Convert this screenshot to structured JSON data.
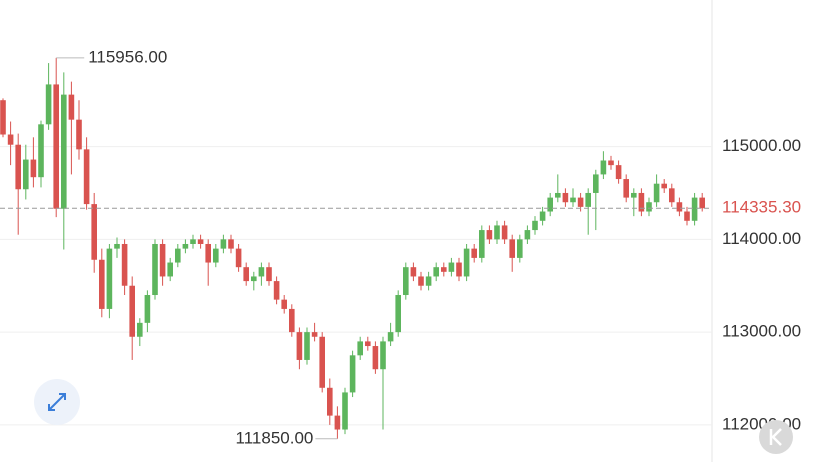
{
  "chart_data": {
    "type": "candlestick",
    "up_color": "#5db55d",
    "down_color": "#d9534f",
    "ylim": [
      111600,
      116580
    ],
    "yticks": [
      {
        "value": 115000,
        "label": "115000.00"
      },
      {
        "value": 114000,
        "label": "114000.00"
      },
      {
        "value": 113000,
        "label": "113000.00"
      },
      {
        "value": 112000,
        "label": "112000.00"
      }
    ],
    "grid": true,
    "current_price": {
      "value": 114335.3,
      "label": "114335.30"
    },
    "max_label": {
      "value": 115956,
      "label": "115956.00"
    },
    "min_label": {
      "value": 111850,
      "label": "111850.00"
    },
    "open": [
      115500,
      115130,
      115020,
      114540,
      114860,
      114670,
      115240,
      115670,
      114330,
      115560,
      115290,
      114970,
      114380,
      113780,
      113250,
      113900,
      113950,
      113500,
      112950,
      113100,
      113400,
      113950,
      113600,
      113750,
      113900,
      113950,
      114000,
      113950,
      113750,
      113900,
      114000,
      113900,
      113700,
      113550,
      113600,
      113700,
      113550,
      113350,
      113250,
      113000,
      112700,
      113000,
      112950,
      112400,
      112100,
      111950,
      112350,
      112750,
      112900,
      112850,
      112600,
      112900,
      113000,
      113400,
      113700,
      113600,
      113500,
      113600,
      113700,
      113650,
      113750,
      113600,
      113900,
      113800,
      114100,
      114000,
      114150,
      114000,
      113800,
      114000,
      114100,
      114200,
      114300,
      114450,
      114500,
      114400,
      114450,
      114350,
      114500,
      114700,
      114850,
      114800,
      114650,
      114450,
      114500,
      114300,
      114400,
      114600,
      114550,
      114400,
      114300,
      114200,
      114450
    ],
    "high": [
      115520,
      115270,
      115140,
      115020,
      115100,
      115280,
      115900,
      115956,
      115800,
      115700,
      115500,
      115100,
      114500,
      113900,
      113950,
      114020,
      114000,
      113600,
      113150,
      113450,
      114000,
      114000,
      113800,
      113950,
      114000,
      114050,
      114050,
      114000,
      113950,
      114050,
      114050,
      113950,
      113750,
      113650,
      113750,
      113750,
      113600,
      113400,
      113300,
      113050,
      113050,
      113100,
      113000,
      112500,
      112200,
      112400,
      112800,
      112950,
      112950,
      112900,
      112950,
      113100,
      113450,
      113750,
      113750,
      113650,
      113650,
      113750,
      113750,
      113800,
      113800,
      113950,
      113950,
      114150,
      114150,
      114200,
      114200,
      114050,
      114050,
      114150,
      114250,
      114350,
      114500,
      114700,
      114550,
      114550,
      114500,
      114550,
      114750,
      114950,
      114900,
      114850,
      114700,
      114550,
      114550,
      114450,
      114700,
      114650,
      114600,
      114450,
      114350,
      114500,
      114500
    ],
    "low": [
      115100,
      114800,
      114050,
      114430,
      114560,
      114560,
      115180,
      114240,
      113890,
      114700,
      114860,
      114320,
      113640,
      113160,
      113150,
      113800,
      113400,
      112700,
      112850,
      113000,
      113350,
      113500,
      113550,
      113700,
      113850,
      113900,
      113900,
      113500,
      113700,
      113850,
      113850,
      113650,
      113500,
      113450,
      113500,
      113500,
      113300,
      113200,
      112950,
      112600,
      112650,
      112900,
      112350,
      112000,
      111850,
      111900,
      112300,
      112700,
      112800,
      112550,
      111950,
      112850,
      112950,
      113350,
      113550,
      113450,
      113450,
      113550,
      113600,
      113600,
      113550,
      113550,
      113750,
      113750,
      113950,
      113950,
      113950,
      113650,
      113750,
      113950,
      114050,
      114150,
      114250,
      114400,
      114350,
      114350,
      114300,
      114050,
      114100,
      114650,
      114750,
      114600,
      114400,
      114250,
      114250,
      114250,
      114350,
      114500,
      114350,
      114250,
      114150,
      114150,
      114300
    ],
    "close": [
      115130,
      115020,
      114540,
      114860,
      114670,
      115240,
      115670,
      114330,
      115560,
      115290,
      114970,
      114380,
      113780,
      113250,
      113900,
      113950,
      113500,
      112950,
      113100,
      113400,
      113950,
      113600,
      113750,
      113900,
      113950,
      114000,
      113950,
      113750,
      113900,
      114000,
      113900,
      113700,
      113550,
      113600,
      113700,
      113550,
      113350,
      113250,
      113000,
      112700,
      113000,
      112950,
      112400,
      112100,
      111950,
      112350,
      112750,
      112900,
      112850,
      112600,
      112900,
      113000,
      113400,
      113700,
      113600,
      113500,
      113600,
      113700,
      113650,
      113750,
      113600,
      113900,
      113800,
      114100,
      114000,
      114150,
      114000,
      113800,
      114000,
      114100,
      114200,
      114300,
      114450,
      114500,
      114400,
      114450,
      114350,
      114500,
      114700,
      114850,
      114800,
      114650,
      114450,
      114500,
      114300,
      114400,
      114600,
      114550,
      114400,
      114300,
      114200,
      114450,
      114335.3
    ]
  }
}
